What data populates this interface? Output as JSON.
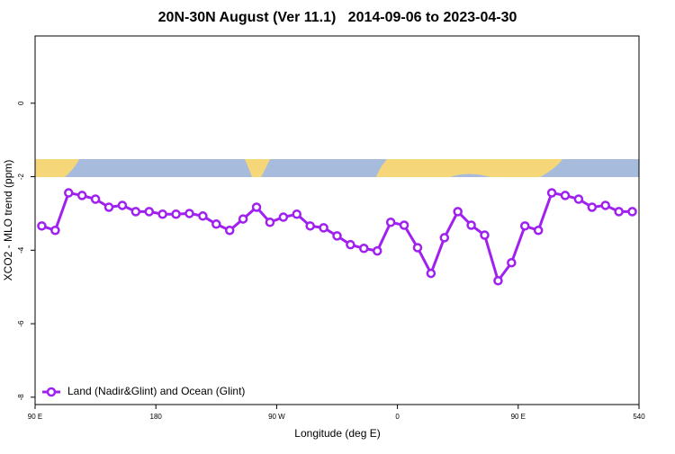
{
  "chart_data": {
    "type": "line",
    "title": "20N-30N August (Ver 11.1)   2014-09-06 to 2023-04-30",
    "x_label": "Longitude (deg E)",
    "y_label": "XCO2 - MLO trend (ppm)",
    "x": [
      95,
      105,
      115,
      125,
      135,
      145,
      155,
      165,
      175,
      185,
      195,
      205,
      215,
      225,
      235,
      245,
      255,
      265,
      275,
      285,
      295,
      305,
      315,
      325,
      335,
      345,
      355,
      365,
      375,
      385,
      395,
      405,
      415,
      425,
      435,
      445,
      455,
      465,
      475,
      485,
      495,
      505,
      515,
      525,
      535
    ],
    "series": [
      {
        "name": "Land (Nadir&Glint) and Ocean (Glint)",
        "color": "#a020f0",
        "values": [
          -3.34,
          -3.46,
          -2.44,
          -2.51,
          -2.61,
          -2.83,
          -2.78,
          -2.95,
          -2.95,
          -3.02,
          -3.02,
          -3.0,
          -3.07,
          -3.29,
          -3.46,
          -3.15,
          -2.83,
          -3.24,
          -3.1,
          -3.02,
          -3.34,
          -3.39,
          -3.61,
          -3.85,
          -3.95,
          -4.02,
          -3.24,
          -3.32,
          -3.93,
          -4.63,
          -3.66,
          -2.95,
          -3.32,
          -3.59,
          -4.83,
          -4.34,
          -3.34,
          -3.46,
          -2.44,
          -2.51,
          -2.61,
          -2.83,
          -2.78,
          -2.95,
          -2.95
        ]
      }
    ],
    "xlim": [
      90,
      540
    ],
    "xticks": [
      {
        "value": 90,
        "label": "90 E"
      },
      180,
      {
        "value": 270,
        "label": "90 W"
      },
      {
        "value": 360,
        "label": "0"
      },
      {
        "value": 450,
        "label": "90 E"
      },
      540
    ],
    "ylim": [
      -8.2,
      1.83
    ],
    "yticks": [
      0,
      -2,
      -4,
      -6,
      -8
    ],
    "legend": "bottom-left"
  }
}
